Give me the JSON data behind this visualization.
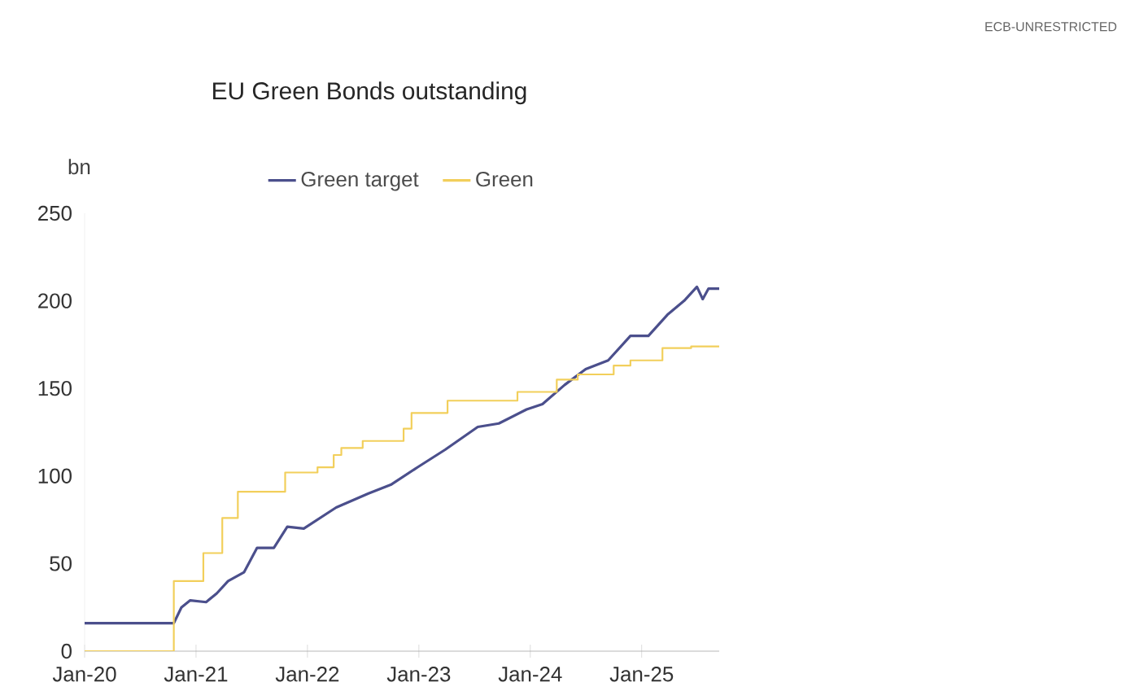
{
  "chart_data": {
    "type": "line",
    "title": "EU Green Bonds outstanding",
    "ylabel": "bn",
    "annotations": [
      "ECB-UNRESTRICTED"
    ],
    "legend": "top",
    "grid": false,
    "marker": "none",
    "line_style": "solid",
    "xlim": [
      "2020-01-01",
      "2025-09-12"
    ],
    "xticks": [
      {
        "value": "2020-01-01",
        "label": "Jan-20"
      },
      {
        "value": "2021-01-01",
        "label": "Jan-21"
      },
      {
        "value": "2022-01-01",
        "label": "Jan-22"
      },
      {
        "value": "2023-01-01",
        "label": "Jan-23"
      },
      {
        "value": "2024-01-01",
        "label": "Jan-24"
      },
      {
        "value": "2025-01-01",
        "label": "Jan-25"
      }
    ],
    "ylim": [
      0,
      250
    ],
    "yticks": [
      0,
      50,
      100,
      150,
      200,
      250
    ],
    "series": [
      {
        "name": "Green target",
        "color": "#4b4f8c",
        "x": [
          "2020-01-01",
          "2020-10-20",
          "2020-11-14",
          "2020-12-13",
          "2021-02-03",
          "2021-03-10",
          "2021-04-16",
          "2021-06-07",
          "2021-07-20",
          "2021-09-13",
          "2021-10-27",
          "2021-12-20",
          "2022-04-05",
          "2022-07-20",
          "2022-10-01",
          "2022-12-28",
          "2023-03-28",
          "2023-07-13",
          "2023-09-20",
          "2023-12-20",
          "2024-02-10",
          "2024-04-23",
          "2024-07-01",
          "2024-09-13",
          "2024-11-25",
          "2025-01-23",
          "2025-03-26",
          "2025-05-20",
          "2025-07-01",
          "2025-07-20",
          "2025-08-08",
          "2025-09-12"
        ],
        "values": [
          16,
          16,
          25,
          29,
          28,
          33,
          40,
          45,
          59,
          59,
          71,
          70,
          82,
          90,
          95,
          105,
          115,
          128,
          130,
          138,
          141,
          152,
          161,
          166,
          180,
          180,
          192,
          200,
          208,
          201,
          207,
          207
        ]
      },
      {
        "name": "Green",
        "type": "step",
        "color": "#f2cf5b",
        "x": [
          "2020-01-01",
          "2020-10-20",
          "2021-01-25",
          "2021-03-28",
          "2021-05-18",
          "2021-10-20",
          "2022-02-03",
          "2022-03-28",
          "2022-04-22",
          "2022-07-01",
          "2022-11-12",
          "2022-12-08",
          "2023-04-05",
          "2023-11-20",
          "2024-03-28",
          "2024-06-05",
          "2024-10-01",
          "2024-11-25",
          "2025-03-10",
          "2025-06-12",
          "2025-09-12"
        ],
        "values": [
          0,
          40,
          56,
          76,
          91,
          102,
          105,
          112,
          116,
          120,
          127,
          136,
          143,
          148,
          155,
          158,
          163,
          166,
          173,
          174,
          174
        ]
      }
    ]
  }
}
